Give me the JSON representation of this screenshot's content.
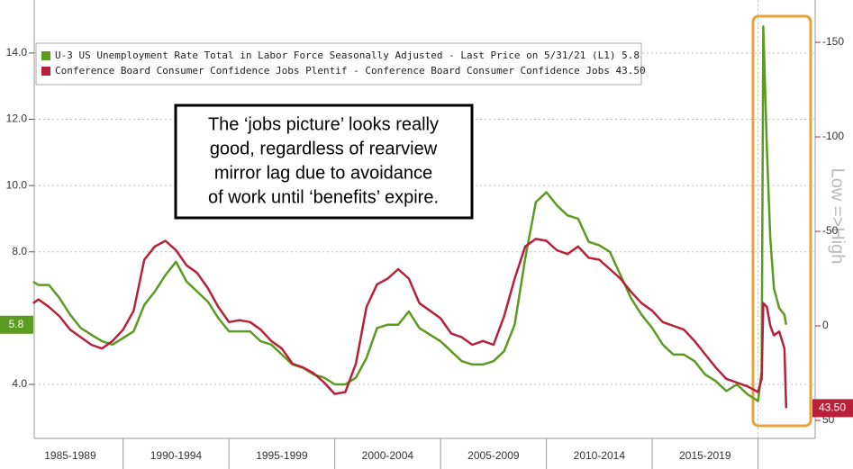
{
  "chart_data": {
    "type": "line",
    "annotation": [
      "The ‘jobs picture’ looks really",
      "good, regardless of rearview",
      "mirror lag due to avoidance",
      "of work until ‘benefits’ expire."
    ],
    "y2label": "Low =>High",
    "x": [
      1985.75,
      1986,
      1986.5,
      1987,
      1987.5,
      1988,
      1988.5,
      1989,
      1989.5,
      1990,
      1990.5,
      1991,
      1991.5,
      1992,
      1992.5,
      1993,
      1993.5,
      1994,
      1994.5,
      1995,
      1995.5,
      1996,
      1996.5,
      1997,
      1997.5,
      1998,
      1998.5,
      1999,
      1999.5,
      2000,
      2000.5,
      2001,
      2001.5,
      2002,
      2002.5,
      2003,
      2003.5,
      2004,
      2004.5,
      2005,
      2005.5,
      2006,
      2006.5,
      2007,
      2007.5,
      2008,
      2008.5,
      2009,
      2009.5,
      2010,
      2010.5,
      2011,
      2011.5,
      2012,
      2012.5,
      2013,
      2013.5,
      2014,
      2014.5,
      2015,
      2015.5,
      2016,
      2016.5,
      2017,
      2017.5,
      2018,
      2018.5,
      2019,
      2019.5,
      2020,
      2020.17,
      2020.25,
      2020.42,
      2020.58,
      2020.75,
      2021,
      2021.25,
      2021.33
    ],
    "xlim": [
      1985.8,
      2022.7
    ],
    "xticks": [
      {
        "value": 1987.5,
        "label": "1985-1989"
      },
      {
        "value": 1992.5,
        "label": "1990-1994"
      },
      {
        "value": 1997.5,
        "label": "1995-1999"
      },
      {
        "value": 2002.5,
        "label": "2000-2004"
      },
      {
        "value": 2007.5,
        "label": "2005-2009"
      },
      {
        "value": 2012.5,
        "label": "2010-2014"
      },
      {
        "value": 2017.5,
        "label": "2015-2019"
      }
    ],
    "ylim": [
      2.37,
      15.6
    ],
    "yticks": [
      {
        "value": 4,
        "label": "4.0"
      },
      {
        "value": 8,
        "label": "8.0"
      },
      {
        "value": 10,
        "label": "10.0"
      },
      {
        "value": 12,
        "label": "12.0"
      },
      {
        "value": 14,
        "label": "14.0"
      }
    ],
    "y2lim": [
      59.5,
      -172.4
    ],
    "y2ticks": [
      -150,
      -100,
      -50,
      0,
      50
    ],
    "grid": true,
    "series": [
      {
        "name": "U-3 US Unemployment Rate Total in Labor Force Seasonally Adjusted - Last Price on 5/31/21 (L1) 5.8",
        "color": "#5b9b1f",
        "values": [
          7.1,
          7.0,
          7.0,
          6.6,
          6.1,
          5.7,
          5.5,
          5.3,
          5.2,
          5.4,
          5.6,
          6.4,
          6.8,
          7.3,
          7.7,
          7.1,
          6.8,
          6.5,
          6.0,
          5.6,
          5.6,
          5.6,
          5.3,
          5.2,
          4.9,
          4.6,
          4.5,
          4.3,
          4.2,
          4.0,
          4.0,
          4.2,
          4.8,
          5.7,
          5.8,
          5.8,
          6.2,
          5.7,
          5.5,
          5.3,
          5.0,
          4.7,
          4.6,
          4.6,
          4.7,
          5.0,
          5.8,
          7.8,
          9.5,
          9.8,
          9.4,
          9.1,
          9.0,
          8.3,
          8.2,
          8.0,
          7.3,
          6.6,
          6.1,
          5.7,
          5.2,
          4.9,
          4.9,
          4.7,
          4.3,
          4.1,
          3.8,
          4.0,
          3.7,
          3.5,
          4.4,
          14.8,
          11.1,
          8.4,
          6.9,
          6.3,
          6.1,
          5.8
        ]
      },
      {
        "name": "Conference Board Consumer Confidence Jobs Plentif - Conference Board Consumer Confidence Jobs 43.50",
        "color": "#b8203a",
        "axis": "y2",
        "values": [
          -12,
          -14,
          -10,
          -5,
          2,
          6,
          10,
          12,
          8,
          2,
          -8,
          -35,
          -42,
          -45,
          -40,
          -32,
          -28,
          -20,
          -10,
          -2,
          -3,
          -2,
          2,
          8,
          12,
          20,
          22,
          25,
          30,
          36,
          35,
          20,
          -10,
          -22,
          -25,
          -30,
          -25,
          -12,
          -8,
          -4,
          4,
          6,
          10,
          8,
          10,
          -5,
          -25,
          -42,
          -46,
          -45,
          -40,
          -38,
          -42,
          -36,
          -35,
          -30,
          -25,
          -18,
          -12,
          -8,
          -2,
          0,
          2,
          8,
          15,
          22,
          28,
          30,
          32,
          35,
          28,
          -12,
          -10,
          0,
          5,
          3,
          12,
          43.5
        ],
        "value_labels": [
          null,
          null,
          null,
          null,
          null,
          null,
          null,
          null,
          null,
          null,
          null,
          null,
          null,
          null,
          null,
          null,
          null,
          null,
          null,
          null,
          null,
          null,
          null,
          null,
          null,
          null,
          null,
          null,
          null,
          null,
          null,
          null,
          null,
          null,
          null,
          null,
          null,
          null,
          null,
          null,
          null,
          null,
          null,
          null,
          null,
          null,
          null,
          null,
          null,
          null,
          null,
          null,
          null,
          null,
          null,
          null,
          null,
          null,
          null,
          null,
          null,
          null,
          null,
          null,
          null,
          null,
          null,
          null,
          null,
          null,
          null,
          null,
          null,
          null,
          null,
          null,
          null,
          "43.50"
        ]
      }
    ]
  }
}
